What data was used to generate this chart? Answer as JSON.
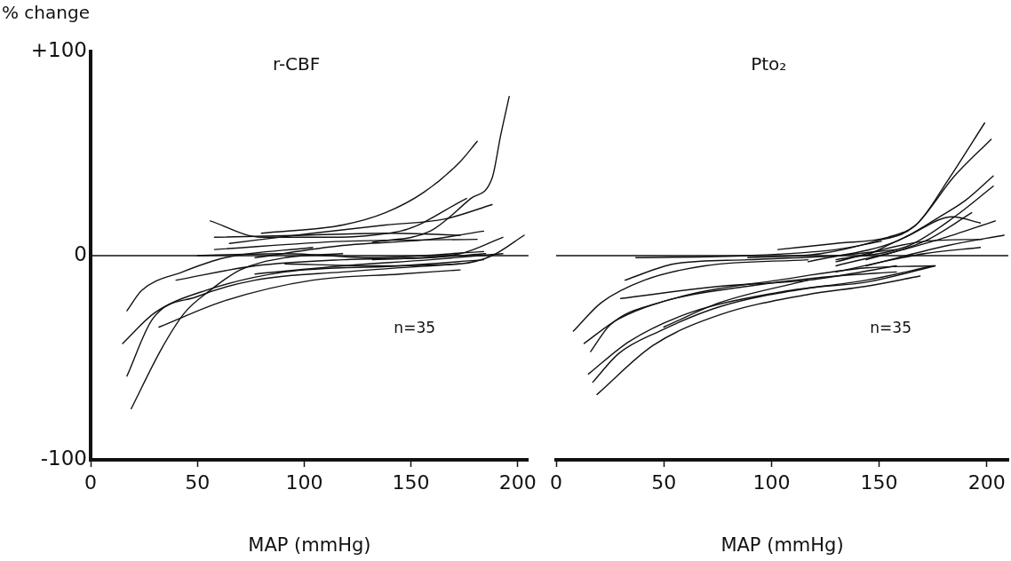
{
  "chart_data": [
    {
      "type": "line",
      "title": "r-CBF",
      "ylabel": "% change",
      "xlabel": "MAP (mmHg)",
      "xlim": [
        0,
        205
      ],
      "xticks": [
        0,
        50,
        100,
        150,
        200
      ],
      "ylim": [
        -100,
        100
      ],
      "yticks": [
        {
          "value": 100,
          "label": "+100"
        },
        0,
        -100
      ],
      "grid": false,
      "marker": "none",
      "line_style": "solid",
      "ref_lines": [
        {
          "axis": "y",
          "value": 0,
          "color": "#111111"
        }
      ],
      "annotations": [
        "n=35"
      ],
      "series": [
        {
          "color": "#111111",
          "x": [
            132,
            159,
            178,
            188,
            192,
            196
          ],
          "values": [
            6.5,
            12,
            28,
            38,
            59,
            78
          ]
        },
        {
          "color": "#111111",
          "x": [
            80,
            118,
            138,
            156,
            173,
            181
          ],
          "values": [
            11,
            15,
            21,
            31,
            46,
            56
          ]
        },
        {
          "color": "#111111",
          "x": [
            56,
            80,
            104,
            145,
            176
          ],
          "values": [
            17,
            9,
            9,
            12,
            28
          ]
        },
        {
          "color": "#111111",
          "x": [
            58,
            100,
            140,
            173
          ],
          "values": [
            9,
            10,
            11,
            10
          ]
        },
        {
          "color": "#111111",
          "x": [
            65,
            104,
            138,
            166,
            188
          ],
          "values": [
            6,
            11,
            15,
            18,
            25
          ]
        },
        {
          "color": "#111111",
          "x": [
            58,
            118,
            181
          ],
          "values": [
            3,
            7,
            8
          ]
        },
        {
          "color": "#111111",
          "x": [
            50,
            91,
            132,
            184
          ],
          "values": [
            0,
            1,
            -1,
            2
          ]
        },
        {
          "color": "#111111",
          "x": [
            91,
            132,
            173,
            188,
            203
          ],
          "values": [
            -4,
            -5,
            -4,
            0,
            10
          ]
        },
        {
          "color": "#111111",
          "x": [
            132,
            173,
            193
          ],
          "values": [
            -2,
            1,
            9
          ]
        },
        {
          "color": "#111111",
          "x": [
            17,
            24,
            43,
            63,
            104
          ],
          "values": [
            -27,
            -17,
            -8,
            -1,
            4
          ]
        },
        {
          "color": "#111111",
          "x": [
            15,
            30,
            54,
            91,
            145,
            184
          ],
          "values": [
            -43,
            -28,
            -17,
            -8,
            -5,
            -2
          ]
        },
        {
          "color": "#111111",
          "x": [
            17,
            29,
            50,
            77,
            118,
            173
          ],
          "values": [
            -59,
            -31,
            -20,
            -12,
            -8,
            -4
          ]
        },
        {
          "color": "#111111",
          "x": [
            19,
            33,
            44,
            56,
            70,
            91,
            118
          ],
          "values": [
            -75,
            -46,
            -28,
            -17,
            -7,
            -1,
            1
          ]
        },
        {
          "color": "#111111",
          "x": [
            32,
            63,
            104,
            145,
            173
          ],
          "values": [
            -35,
            -22,
            -12,
            -9,
            -7
          ]
        },
        {
          "color": "#111111",
          "x": [
            40,
            77,
            118,
            159,
            185
          ],
          "values": [
            -12,
            -5,
            -2,
            -1,
            1
          ]
        },
        {
          "color": "#111111",
          "x": [
            77,
            118,
            159,
            193
          ],
          "values": [
            -9,
            -5,
            -2,
            1
          ]
        },
        {
          "color": "#111111",
          "x": [
            77,
            118,
            159,
            184
          ],
          "values": [
            -1,
            5,
            8,
            12
          ]
        }
      ]
    },
    {
      "type": "line",
      "title": "Pto₂",
      "xlabel": "MAP (mmHg)",
      "xlim": [
        0,
        210
      ],
      "xticks": [
        0,
        50,
        100,
        150,
        200
      ],
      "ylim": [
        -100,
        100
      ],
      "tick_labels": "x",
      "grid": false,
      "marker": "none",
      "line_style": "solid",
      "ref_lines": [
        {
          "axis": "y",
          "value": 0,
          "color": "#111111"
        }
      ],
      "annotations": [
        "n=35"
      ],
      "series": [
        {
          "color": "#111111",
          "x": [
            103,
            130,
            154,
            168,
            182,
            199
          ],
          "values": [
            3,
            6,
            9,
            16,
            37,
            65
          ]
        },
        {
          "color": "#111111",
          "x": [
            89,
            123,
            148,
            166,
            185,
            202
          ],
          "values": [
            -1,
            1,
            7,
            14,
            39,
            57
          ]
        },
        {
          "color": "#111111",
          "x": [
            117,
            158,
            178,
            190,
            203
          ],
          "values": [
            -3,
            7,
            19,
            27,
            39
          ]
        },
        {
          "color": "#111111",
          "x": [
            130,
            164,
            185,
            203
          ],
          "values": [
            -2,
            5,
            19,
            34
          ]
        },
        {
          "color": "#111111",
          "x": [
            130,
            171,
            193
          ],
          "values": [
            -5,
            7,
            21
          ]
        },
        {
          "color": "#111111",
          "x": [
            144,
            164,
            184,
            197
          ],
          "values": [
            0,
            10,
            19,
            16
          ]
        },
        {
          "color": "#111111",
          "x": [
            144,
            178,
            204
          ],
          "values": [
            -2,
            8,
            17
          ]
        },
        {
          "color": "#111111",
          "x": [
            130,
            171,
            198
          ],
          "values": [
            -3,
            7,
            8
          ]
        },
        {
          "color": "#111111",
          "x": [
            144,
            182,
            208
          ],
          "values": [
            -5,
            5,
            10
          ]
        },
        {
          "color": "#111111",
          "x": [
            130,
            171,
            197
          ],
          "values": [
            -8,
            1,
            4
          ]
        },
        {
          "color": "#111111",
          "x": [
            37,
            89,
            130,
            151
          ],
          "values": [
            -1,
            0,
            3,
            7
          ]
        },
        {
          "color": "#111111",
          "x": [
            32,
            55,
            89,
            130,
            158
          ],
          "values": [
            -12,
            -4,
            -2,
            0,
            3
          ]
        },
        {
          "color": "#111111",
          "x": [
            8,
            21,
            41,
            69,
            117
          ],
          "values": [
            -37,
            -23,
            -12,
            -5,
            -2
          ]
        },
        {
          "color": "#111111",
          "x": [
            13,
            29,
            62,
            103,
            144,
            176
          ],
          "values": [
            -43,
            -31,
            -19,
            -12,
            -6,
            -5
          ]
        },
        {
          "color": "#111111",
          "x": [
            16,
            25,
            48,
            89,
            130,
            158
          ],
          "values": [
            -47,
            -34,
            -23,
            -15,
            -10,
            -8
          ]
        },
        {
          "color": "#111111",
          "x": [
            15,
            34,
            62,
            103,
            144,
            175
          ],
          "values": [
            -58,
            -42,
            -28,
            -18,
            -12,
            -5
          ]
        },
        {
          "color": "#111111",
          "x": [
            17,
            29,
            48,
            76,
            117,
            144,
            176
          ],
          "values": [
            -62,
            -48,
            -37,
            -25,
            -16,
            -13,
            -5
          ]
        },
        {
          "color": "#111111",
          "x": [
            19,
            45,
            76,
            117,
            144,
            169
          ],
          "values": [
            -68,
            -44,
            -29,
            -19,
            -15,
            -10
          ]
        },
        {
          "color": "#111111",
          "x": [
            30,
            76,
            117,
            158
          ],
          "values": [
            -21,
            -15,
            -12,
            -5
          ]
        },
        {
          "color": "#111111",
          "x": [
            50,
            76,
            117
          ],
          "values": [
            -35,
            -23,
            -12
          ]
        }
      ]
    }
  ]
}
